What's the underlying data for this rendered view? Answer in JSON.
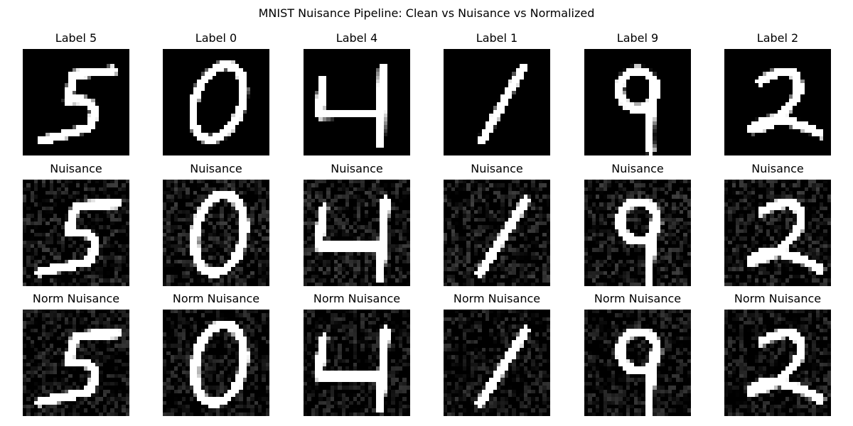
{
  "figure": {
    "title": "MNIST Nuisance Pipeline: Clean vs Nuisance vs Normalized"
  },
  "rows": [
    {
      "id": "clean",
      "titles": [
        "Label 5",
        "Label 0",
        "Label 4",
        "Label 1",
        "Label 9",
        "Label 2"
      ]
    },
    {
      "id": "nuisance",
      "titles": [
        "Nuisance",
        "Nuisance",
        "Nuisance",
        "Nuisance",
        "Nuisance",
        "Nuisance"
      ]
    },
    {
      "id": "normalized",
      "titles": [
        "Norm Nuisance",
        "Norm Nuisance",
        "Norm Nuisance",
        "Norm Nuisance",
        "Norm Nuisance",
        "Norm Nuisance"
      ]
    }
  ],
  "digits": [
    "5",
    "0",
    "4",
    "1",
    "9",
    "2"
  ],
  "colors": {
    "background": "#000000",
    "stroke": "#ffffff"
  }
}
